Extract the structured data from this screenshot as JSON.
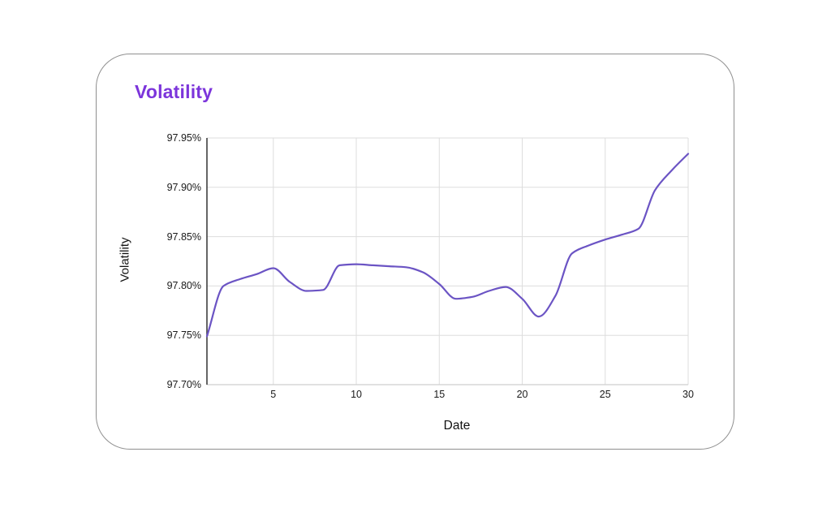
{
  "card": {
    "title": "Volatility",
    "title_color": "#7C35DB",
    "border_color": "#8f8f8f",
    "background": "#ffffff"
  },
  "chart_data": {
    "type": "line",
    "title": "Volatility",
    "xlabel": "Date",
    "ylabel": "Volatility",
    "x": [
      1,
      2,
      3,
      4,
      5,
      6,
      7,
      8,
      9,
      10,
      11,
      12,
      13,
      14,
      15,
      16,
      17,
      18,
      19,
      20,
      21,
      22,
      23,
      24,
      25,
      26,
      27,
      28,
      29,
      30
    ],
    "series": [
      {
        "name": "Volatility",
        "values": [
          97.749,
          97.8,
          97.807,
          97.812,
          97.818,
          97.804,
          97.795,
          97.796,
          97.821,
          97.822,
          97.821,
          97.82,
          97.819,
          97.814,
          97.802,
          97.787,
          97.789,
          97.795,
          97.799,
          97.787,
          97.769,
          97.79,
          97.833,
          97.841,
          97.847,
          97.852,
          97.858,
          97.897,
          97.917,
          97.934
        ]
      }
    ],
    "xlim": [
      1,
      30
    ],
    "ylim": [
      97.7,
      97.95
    ],
    "x_ticks": [
      5,
      10,
      15,
      20,
      25,
      30
    ],
    "x_tick_labels": [
      "5",
      "10",
      "15",
      "20",
      "25",
      "30"
    ],
    "y_ticks": [
      97.95,
      97.9,
      97.85,
      97.8,
      97.75,
      97.7
    ],
    "y_tick_labels": [
      "97.95%",
      "97.90%",
      "97.85%",
      "97.80%",
      "97.75%",
      "97.70%"
    ],
    "grid": true,
    "legend": "none",
    "line_color": "#6B54C4",
    "grid_color": "#DDDDDD",
    "left_spine_color": "#3F3F3F",
    "bottom_spine_color": "#CFCFCF",
    "curve": "monotone"
  }
}
